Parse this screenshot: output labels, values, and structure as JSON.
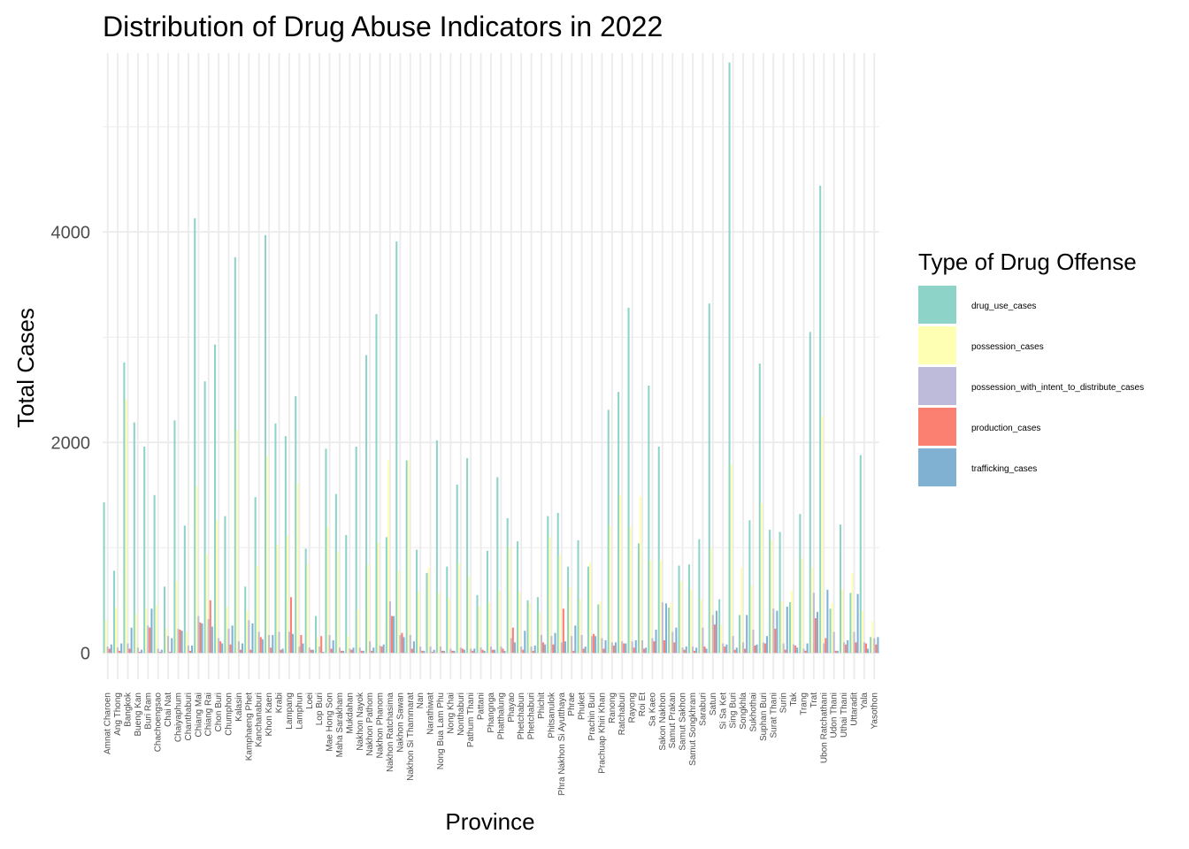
{
  "chart_data": {
    "type": "bar",
    "title": "Distribution of Drug Abuse Indicators in 2022",
    "xlabel": "Province",
    "ylabel": "Total Cases",
    "ylim": [
      -250,
      5700
    ],
    "yticks": [
      0,
      2000,
      4000
    ],
    "grid": true,
    "legend": {
      "title": "Type of Drug Offense",
      "position": "right"
    },
    "categories": [
      "Amnat Charoen",
      "Ang Thong",
      "Bangkok",
      "Bueng Kan",
      "Buri Ram",
      "Chachoengsao",
      "Chai Nat",
      "Chaiyaphum",
      "Chanthaburi",
      "Chiang Mai",
      "Chiang Rai",
      "Chon Buri",
      "Chumphon",
      "Kalasin",
      "Kamphaeng Phet",
      "Kanchanaburi",
      "Khon Kaen",
      "Krabi",
      "Lampang",
      "Lamphun",
      "Loei",
      "Lop Buri",
      "Mae Hong Son",
      "Maha Sarakham",
      "Mukdahan",
      "Nakhon Nayok",
      "Nakhon Pathom",
      "Nakhon Phanom",
      "Nakhon Ratchasima",
      "Nakhon Sawan",
      "Nakhon Si Thammarat",
      "Nan",
      "Narathiwat",
      "Nong Bua Lam Phu",
      "Nong Khai",
      "Nonthaburi",
      "Pathum Thani",
      "Pattani",
      "Phangnga",
      "Phatthalung",
      "Phayao",
      "Phetchabun",
      "Phetchaburi",
      "Phichit",
      "Phitsanulok",
      "Phra Nakhon Si Ayutthaya",
      "Phrae",
      "Phuket",
      "Prachin Buri",
      "Prachuap Khiri Khan",
      "Ranong",
      "Ratchaburi",
      "Rayong",
      "Roi Et",
      "Sa Kaeo",
      "Sakon Nakhon",
      "Samut Prakan",
      "Samut Sakhon",
      "Samut Songkhram",
      "Saraburi",
      "Satun",
      "Si Sa Ket",
      "Sing Buri",
      "Songkhla",
      "Sukhothai",
      "Suphan Buri",
      "Surat Thani",
      "Surin",
      "Tak",
      "Trang",
      "Trat",
      "Ubon Ratchathani",
      "Udon Thani",
      "Uthai Thani",
      "Uttaradit",
      "Yala",
      "Yasothon"
    ],
    "series": [
      {
        "name": "drug_use_cases",
        "color": "#8DD3C7",
        "values": [
          1430,
          780,
          2760,
          2190,
          1960,
          1500,
          630,
          2210,
          1210,
          4130,
          2580,
          2930,
          1300,
          3760,
          630,
          1480,
          3970,
          2180,
          2060,
          2440,
          990,
          350,
          1940,
          1510,
          1120,
          1960,
          2830,
          3220,
          1100,
          3910,
          1830,
          980,
          760,
          2020,
          820,
          1600,
          1850,
          550,
          970,
          1670,
          1280,
          1060,
          500,
          530,
          1300,
          1330,
          820,
          1070,
          820,
          460,
          2310,
          2480,
          3280,
          1040,
          2540,
          1960,
          430,
          830,
          840,
          1080,
          3320,
          510,
          5610,
          360,
          1260,
          2750,
          1170,
          1150,
          480,
          1320,
          3050,
          4440,
          420,
          1220,
          570,
          1880,
          150
        ]
      },
      {
        "name": "possession_cases",
        "color": "#FFFFB3",
        "values": [
          310,
          430,
          2410,
          370,
          420,
          450,
          230,
          680,
          200,
          1580,
          940,
          1260,
          440,
          2120,
          400,
          830,
          1870,
          1030,
          1110,
          1610,
          840,
          140,
          1200,
          960,
          160,
          410,
          840,
          1050,
          1830,
          780,
          1830,
          580,
          810,
          570,
          520,
          850,
          730,
          440,
          480,
          590,
          1010,
          580,
          470,
          390,
          1100,
          930,
          620,
          510,
          860,
          490,
          1210,
          1500,
          1200,
          1490,
          880,
          880,
          480,
          680,
          600,
          510,
          1000,
          270,
          1790,
          810,
          640,
          1420,
          1070,
          490,
          590,
          900,
          810,
          2250,
          470,
          600,
          760,
          400,
          300
        ]
      },
      {
        "name": "possession_with_intent_to_distribute_cases",
        "color": "#BEBADA",
        "values": [
          60,
          50,
          90,
          50,
          260,
          40,
          160,
          230,
          70,
          350,
          320,
          140,
          230,
          110,
          310,
          200,
          170,
          200,
          200,
          60,
          50,
          60,
          170,
          50,
          40,
          50,
          110,
          70,
          490,
          170,
          170,
          60,
          60,
          60,
          40,
          50,
          40,
          50,
          60,
          60,
          140,
          60,
          60,
          170,
          160,
          100,
          160,
          170,
          160,
          140,
          100,
          110,
          110,
          120,
          140,
          480,
          200,
          50,
          60,
          240,
          360,
          90,
          160,
          100,
          220,
          100,
          420,
          90,
          80,
          40,
          570,
          90,
          200,
          100,
          200,
          100,
          140
        ]
      },
      {
        "name": "production_cases",
        "color": "#FB8072",
        "values": [
          40,
          20,
          40,
          10,
          240,
          10,
          10,
          220,
          20,
          290,
          500,
          110,
          80,
          30,
          30,
          150,
          50,
          30,
          530,
          170,
          30,
          160,
          40,
          20,
          30,
          20,
          20,
          60,
          350,
          190,
          40,
          20,
          10,
          20,
          20,
          40,
          20,
          30,
          30,
          40,
          240,
          30,
          20,
          100,
          80,
          420,
          20,
          40,
          180,
          40,
          70,
          90,
          50,
          40,
          110,
          120,
          100,
          30,
          20,
          60,
          270,
          60,
          30,
          40,
          70,
          90,
          230,
          30,
          70,
          20,
          330,
          140,
          20,
          80,
          100,
          90,
          80
        ]
      },
      {
        "name": "trafficking_cases",
        "color": "#80B1D3",
        "values": [
          80,
          90,
          240,
          30,
          420,
          30,
          140,
          210,
          70,
          280,
          250,
          90,
          260,
          90,
          280,
          130,
          170,
          40,
          180,
          90,
          30,
          10,
          120,
          20,
          50,
          20,
          50,
          80,
          350,
          150,
          110,
          20,
          30,
          20,
          20,
          30,
          40,
          20,
          30,
          20,
          100,
          210,
          70,
          80,
          190,
          110,
          260,
          60,
          160,
          120,
          100,
          90,
          120,
          50,
          220,
          470,
          240,
          60,
          50,
          40,
          400,
          80,
          50,
          360,
          80,
          160,
          400,
          440,
          50,
          90,
          390,
          600,
          20,
          120,
          560,
          40,
          150
        ]
      }
    ]
  }
}
